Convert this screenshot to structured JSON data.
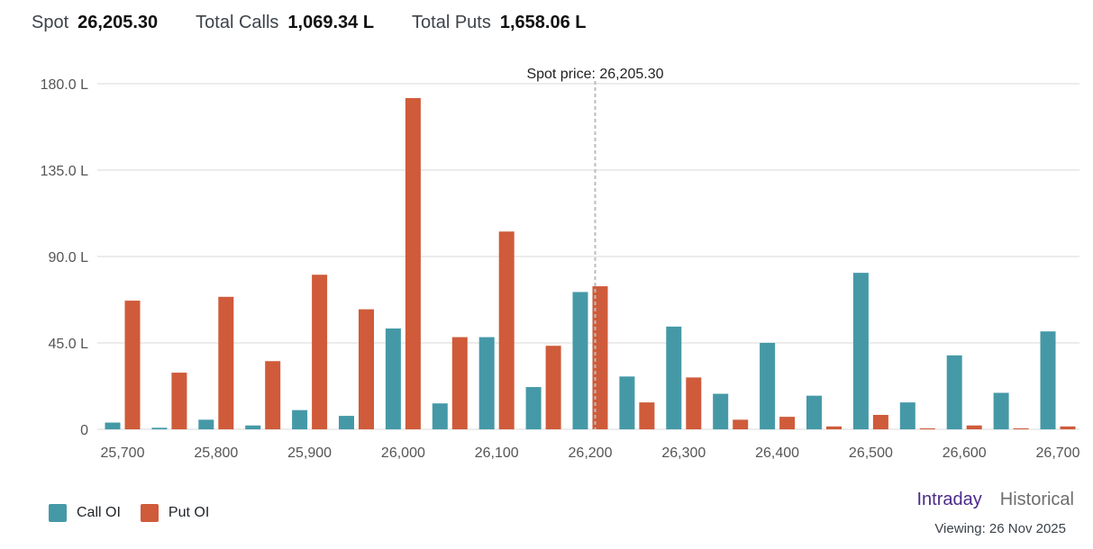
{
  "stats": {
    "spot_label": "Spot",
    "spot_value": "26,205.30",
    "calls_label": "Total Calls",
    "calls_value": "1,069.34 L",
    "puts_label": "Total Puts",
    "puts_value": "1,658.06 L"
  },
  "colors": {
    "call": "#4599a7",
    "put": "#cf5b3a",
    "grid": "#d9d9d9",
    "spot_line": "#bdbdbd"
  },
  "chart_data": {
    "type": "bar",
    "categories": [
      25700,
      25750,
      25800,
      25850,
      25900,
      25950,
      26000,
      26050,
      26100,
      26150,
      26200,
      26250,
      26300,
      26350,
      26400,
      26450,
      26500,
      26550,
      26600,
      26650,
      26700
    ],
    "series": [
      {
        "name": "Call OI",
        "values": [
          3.5,
          0.8,
          5,
          2,
          10,
          7,
          52.5,
          13.5,
          48,
          22,
          71.5,
          27.5,
          53.5,
          18.5,
          45,
          17.5,
          81.5,
          14,
          38.5,
          19,
          51
        ]
      },
      {
        "name": "Put OI",
        "values": [
          67,
          29.5,
          69,
          35.5,
          80.5,
          62.5,
          172.5,
          48,
          103,
          43.5,
          74.5,
          14,
          27,
          5,
          6.5,
          1.5,
          7.5,
          0.5,
          2,
          0.5,
          1.5
        ]
      }
    ],
    "yticks": [
      "0",
      "45.0 L",
      "90.0 L",
      "135.0 L",
      "180.0 L"
    ],
    "ytick_values": [
      0,
      45,
      90,
      135,
      180
    ],
    "xticks": [
      "25,700",
      "25,800",
      "25,900",
      "26,000",
      "26,100",
      "26,200",
      "26,300",
      "26,400",
      "26,500",
      "26,600",
      "26,700"
    ],
    "xtick_values": [
      25700,
      25800,
      25900,
      26000,
      26100,
      26200,
      26300,
      26400,
      26500,
      26600,
      26700
    ],
    "ylim": [
      0,
      180
    ],
    "grid": true,
    "spot_price": 26205.3,
    "spot_annotation": "Spot price: 26,205.30",
    "legend_position": "bottom-left"
  },
  "legend": {
    "call_label": "Call OI",
    "put_label": "Put OI"
  },
  "tabs": {
    "intraday": "Intraday",
    "historical": "Historical"
  },
  "viewing": "Viewing: 26 Nov 2025"
}
